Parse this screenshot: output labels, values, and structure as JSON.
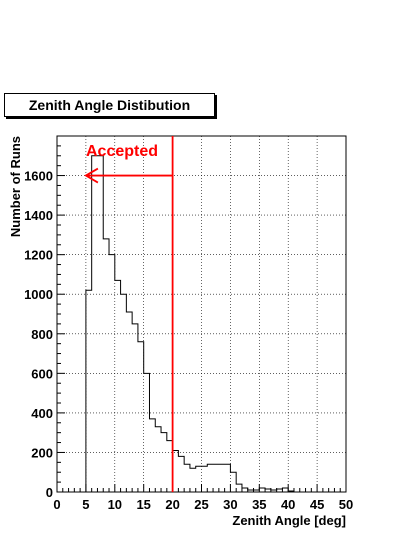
{
  "chart_data": {
    "type": "bar",
    "title": "Zenith Angle Distibution",
    "xlabel": "Zenith Angle [deg]",
    "ylabel": "Number of Runs",
    "xlim": [
      0,
      50
    ],
    "ylim": [
      0,
      1800
    ],
    "grid": true,
    "histogram": true,
    "bin_width": 1,
    "x_ticks": [
      0,
      5,
      10,
      15,
      20,
      25,
      30,
      35,
      40,
      45,
      50
    ],
    "y_ticks": [
      0,
      200,
      400,
      600,
      800,
      1000,
      1200,
      1400,
      1600
    ],
    "x": [
      5.5,
      6.5,
      7.5,
      8.5,
      9.5,
      10.5,
      11.5,
      12.5,
      13.5,
      14.5,
      15.5,
      16.5,
      17.5,
      18.5,
      19.5,
      20.5,
      21.5,
      22.5,
      23.5,
      24.5,
      25.5,
      26.5,
      27.5,
      28.5,
      29.5,
      30.5,
      31.5,
      32.5,
      33.5,
      34.5,
      35.5,
      36.5,
      37.5,
      38.5,
      39.5,
      40.5
    ],
    "values": [
      1020,
      1700,
      1700,
      1280,
      1200,
      1070,
      1000,
      910,
      850,
      760,
      600,
      370,
      330,
      300,
      260,
      210,
      180,
      140,
      120,
      130,
      130,
      140,
      140,
      140,
      140,
      100,
      40,
      20,
      10,
      10,
      20,
      15,
      10,
      15,
      20,
      5
    ],
    "annotations": [
      {
        "text": "Accepted",
        "color": "#ff0000"
      }
    ],
    "cut_line_x": 20,
    "arrow": {
      "from_x": 20,
      "to_x": 5,
      "y": 1600,
      "color": "#ff0000"
    }
  }
}
